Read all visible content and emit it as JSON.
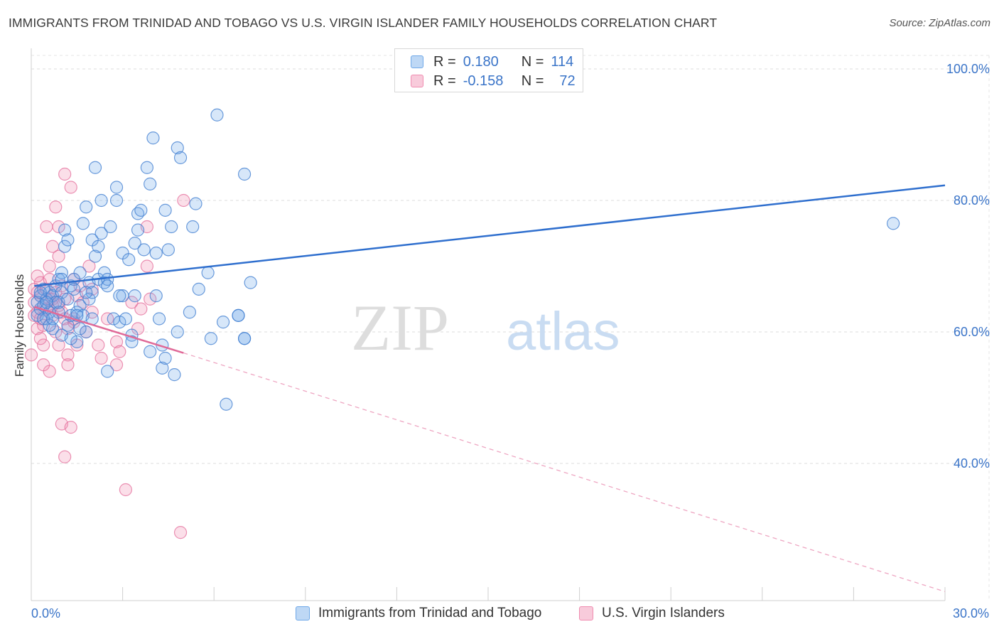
{
  "title": "IMMIGRANTS FROM TRINIDAD AND TOBAGO VS U.S. VIRGIN ISLANDER FAMILY HOUSEHOLDS CORRELATION CHART",
  "source": "Source: ZipAtlas.com",
  "watermark": {
    "zip": "ZIP",
    "atlas": "atlas"
  },
  "legend_top": [
    {
      "r_label": "R =",
      "r_value": "0.180",
      "n_label": "N =",
      "n_value": "114",
      "color": "#6fa8e8"
    },
    {
      "r_label": "R =",
      "r_value": "-0.158",
      "n_label": "N =",
      "n_value": "72",
      "color": "#f08cb0"
    }
  ],
  "legend_bottom": [
    {
      "label": "Immigrants from Trinidad and Tobago",
      "color": "#6fa8e8"
    },
    {
      "label": "U.S. Virgin Islanders",
      "color": "#f08cb0"
    }
  ],
  "x_min_label": "0.0%",
  "x_max_label": "30.0%",
  "chart_data": {
    "type": "scatter",
    "title": "IMMIGRANTS FROM TRINIDAD AND TOBAGO VS U.S. VIRGIN ISLANDER FAMILY HOUSEHOLDS CORRELATION CHART",
    "xlabel": "",
    "ylabel": "Family Households",
    "xlim": [
      0,
      30
    ],
    "ylim": [
      20,
      102
    ],
    "y_ticks": [
      40,
      60,
      80,
      100
    ],
    "y_tick_labels": [
      "40.0%",
      "60.0%",
      "80.0%",
      "100.0%"
    ],
    "x_tick_labels": [
      "0.0%",
      "30.0%"
    ],
    "grid": true,
    "series": [
      {
        "name": "Immigrants from Trinidad and Tobago",
        "color": "#6fa8e8",
        "trend": {
          "x": [
            0.1,
            30
          ],
          "y": [
            67.0,
            82.3
          ],
          "dashed_to": null
        },
        "points": [
          [
            0.2,
            62.5
          ],
          [
            0.3,
            63.5
          ],
          [
            0.3,
            65.5
          ],
          [
            0.4,
            64.0
          ],
          [
            0.4,
            66.5
          ],
          [
            0.5,
            62.0
          ],
          [
            0.5,
            65.0
          ],
          [
            0.6,
            63.0
          ],
          [
            0.6,
            66.0
          ],
          [
            0.7,
            65.5
          ],
          [
            0.7,
            60.5
          ],
          [
            0.8,
            67.0
          ],
          [
            0.8,
            64.5
          ],
          [
            0.9,
            68.0
          ],
          [
            0.9,
            63.0
          ],
          [
            1.0,
            69.0
          ],
          [
            1.0,
            66.0
          ],
          [
            1.0,
            59.5
          ],
          [
            1.1,
            75.5
          ],
          [
            1.1,
            73.0
          ],
          [
            1.2,
            74.0
          ],
          [
            1.2,
            61.0
          ],
          [
            1.3,
            67.0
          ],
          [
            1.3,
            62.5
          ],
          [
            1.4,
            68.0
          ],
          [
            1.4,
            66.5
          ],
          [
            1.5,
            63.0
          ],
          [
            1.5,
            58.5
          ],
          [
            1.6,
            69.0
          ],
          [
            1.6,
            64.0
          ],
          [
            1.7,
            62.5
          ],
          [
            1.7,
            76.5
          ],
          [
            1.8,
            79.0
          ],
          [
            1.8,
            60.0
          ],
          [
            1.9,
            67.5
          ],
          [
            1.9,
            65.0
          ],
          [
            2.0,
            74.0
          ],
          [
            2.0,
            62.0
          ],
          [
            2.1,
            85.0
          ],
          [
            2.1,
            71.5
          ],
          [
            2.2,
            73.0
          ],
          [
            2.2,
            68.0
          ],
          [
            2.3,
            80.0
          ],
          [
            2.3,
            75.0
          ],
          [
            2.4,
            67.5
          ],
          [
            2.4,
            69.0
          ],
          [
            2.5,
            68.0
          ],
          [
            2.5,
            54.0
          ],
          [
            2.6,
            76.0
          ],
          [
            2.7,
            62.0
          ],
          [
            2.8,
            80.0
          ],
          [
            2.8,
            82.0
          ],
          [
            2.9,
            61.5
          ],
          [
            3.0,
            65.5
          ],
          [
            3.0,
            72.0
          ],
          [
            3.1,
            62.0
          ],
          [
            3.2,
            71.0
          ],
          [
            3.3,
            59.5
          ],
          [
            3.3,
            58.5
          ],
          [
            3.4,
            65.5
          ],
          [
            3.4,
            73.5
          ],
          [
            3.5,
            75.5
          ],
          [
            3.5,
            78.0
          ],
          [
            3.6,
            78.5
          ],
          [
            3.7,
            72.5
          ],
          [
            3.8,
            85.0
          ],
          [
            3.9,
            57.0
          ],
          [
            3.9,
            82.5
          ],
          [
            4.0,
            89.5
          ],
          [
            4.1,
            65.5
          ],
          [
            4.1,
            72.0
          ],
          [
            4.2,
            62.0
          ],
          [
            4.3,
            54.5
          ],
          [
            4.3,
            58.0
          ],
          [
            4.4,
            56.0
          ],
          [
            4.4,
            78.5
          ],
          [
            4.5,
            72.5
          ],
          [
            4.6,
            76.0
          ],
          [
            4.7,
            53.5
          ],
          [
            4.8,
            60.0
          ],
          [
            4.8,
            88.0
          ],
          [
            4.9,
            86.5
          ],
          [
            5.2,
            63.0
          ],
          [
            5.3,
            76.0
          ],
          [
            5.4,
            79.5
          ],
          [
            5.5,
            66.5
          ],
          [
            5.8,
            69.0
          ],
          [
            5.9,
            59.0
          ],
          [
            6.1,
            93.0
          ],
          [
            6.3,
            61.5
          ],
          [
            6.8,
            62.5
          ],
          [
            6.4,
            49.0
          ],
          [
            6.8,
            62.5
          ],
          [
            7.0,
            59.0
          ],
          [
            7.0,
            84.0
          ],
          [
            7.0,
            59.0
          ],
          [
            7.2,
            67.5
          ],
          [
            0.2,
            64.5
          ],
          [
            0.4,
            62.0
          ],
          [
            0.6,
            61.0
          ],
          [
            0.9,
            64.5
          ],
          [
            1.3,
            59.0
          ],
          [
            1.6,
            60.5
          ],
          [
            2.0,
            66.0
          ],
          [
            2.5,
            67.0
          ],
          [
            2.9,
            65.5
          ],
          [
            0.3,
            66.0
          ],
          [
            0.5,
            64.5
          ],
          [
            0.7,
            62.0
          ],
          [
            1.0,
            68.0
          ],
          [
            1.2,
            65.0
          ],
          [
            1.5,
            62.5
          ],
          [
            1.8,
            66.0
          ],
          [
            28.3,
            76.5
          ]
        ]
      },
      {
        "name": "U.S. Virgin Islanders",
        "color": "#f08cb0",
        "trend": {
          "x": [
            0.1,
            5.0
          ],
          "y": [
            63.8,
            56.8
          ],
          "dashed_to": [
            30,
            20.5
          ]
        },
        "points": [
          [
            0.0,
            56.5
          ],
          [
            0.1,
            62.5
          ],
          [
            0.1,
            64.5
          ],
          [
            0.2,
            63.0
          ],
          [
            0.2,
            66.0
          ],
          [
            0.2,
            60.5
          ],
          [
            0.3,
            65.5
          ],
          [
            0.3,
            67.5
          ],
          [
            0.3,
            62.0
          ],
          [
            0.4,
            64.0
          ],
          [
            0.4,
            61.0
          ],
          [
            0.4,
            58.0
          ],
          [
            0.5,
            66.5
          ],
          [
            0.5,
            63.5
          ],
          [
            0.5,
            76.0
          ],
          [
            0.6,
            65.0
          ],
          [
            0.6,
            68.0
          ],
          [
            0.6,
            54.0
          ],
          [
            0.7,
            73.0
          ],
          [
            0.7,
            62.5
          ],
          [
            0.7,
            65.0
          ],
          [
            0.8,
            79.0
          ],
          [
            0.8,
            66.0
          ],
          [
            0.8,
            60.0
          ],
          [
            0.9,
            71.5
          ],
          [
            0.9,
            64.0
          ],
          [
            0.9,
            58.0
          ],
          [
            1.0,
            67.0
          ],
          [
            1.0,
            63.0
          ],
          [
            1.0,
            46.0
          ],
          [
            1.1,
            41.0
          ],
          [
            1.1,
            62.0
          ],
          [
            1.1,
            65.0
          ],
          [
            1.2,
            56.5
          ],
          [
            1.2,
            55.0
          ],
          [
            1.3,
            45.5
          ],
          [
            1.3,
            82.0
          ],
          [
            1.4,
            68.0
          ],
          [
            1.4,
            61.5
          ],
          [
            1.5,
            65.5
          ],
          [
            1.5,
            58.0
          ],
          [
            1.6,
            67.0
          ],
          [
            1.7,
            64.5
          ],
          [
            1.8,
            60.0
          ],
          [
            1.9,
            70.0
          ],
          [
            2.0,
            63.0
          ],
          [
            2.0,
            66.5
          ],
          [
            2.2,
            58.0
          ],
          [
            2.3,
            56.0
          ],
          [
            2.5,
            62.0
          ],
          [
            2.8,
            58.5
          ],
          [
            2.9,
            57.0
          ],
          [
            3.1,
            36.0
          ],
          [
            3.3,
            64.5
          ],
          [
            3.5,
            60.5
          ],
          [
            3.6,
            63.5
          ],
          [
            3.8,
            70.0
          ],
          [
            3.9,
            65.0
          ],
          [
            4.9,
            29.5
          ],
          [
            5.0,
            80.0
          ],
          [
            0.1,
            66.5
          ],
          [
            0.2,
            68.5
          ],
          [
            0.3,
            59.0
          ],
          [
            0.4,
            55.0
          ],
          [
            0.6,
            70.0
          ],
          [
            0.7,
            64.0
          ],
          [
            0.9,
            76.0
          ],
          [
            1.1,
            84.0
          ],
          [
            1.2,
            60.5
          ],
          [
            1.4,
            62.0
          ],
          [
            2.8,
            55.0
          ],
          [
            3.8,
            76.0
          ]
        ]
      }
    ]
  }
}
